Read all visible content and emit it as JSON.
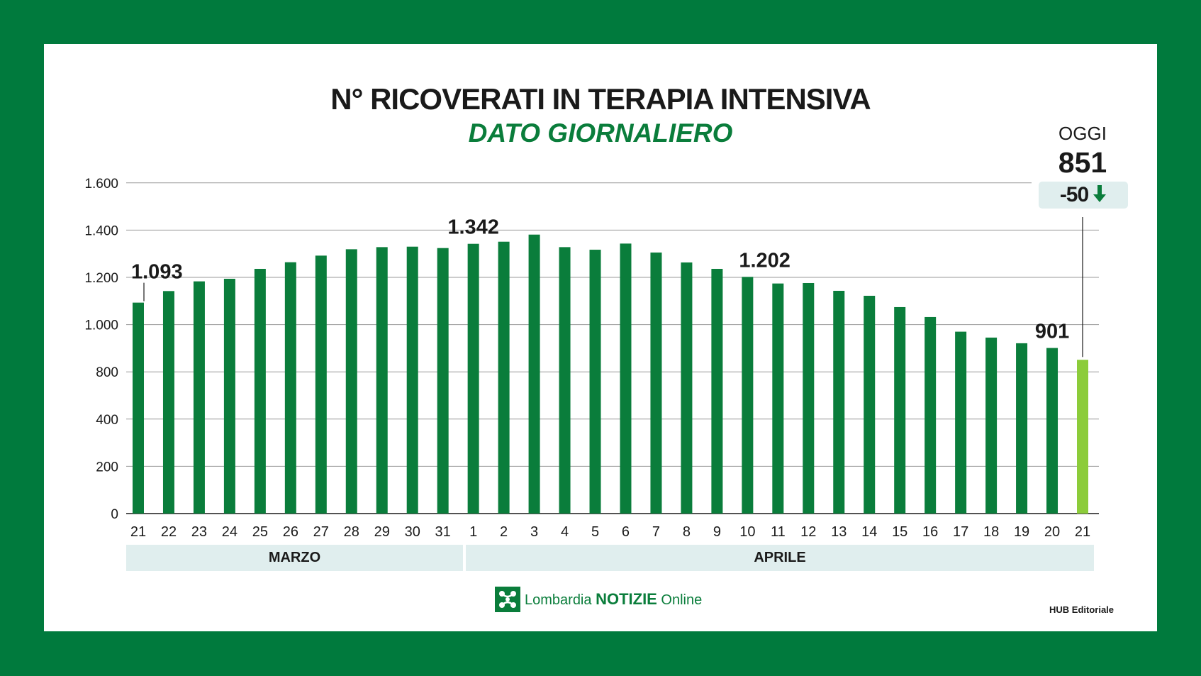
{
  "title": "N° RICOVERATI IN TERAPIA INTENSIVA",
  "subtitle": "DATO GIORNALIERO",
  "today": {
    "label": "OGGI",
    "value": "851",
    "delta": "-50"
  },
  "months": [
    "MARZO",
    "APRILE"
  ],
  "footer": {
    "brand_a": "Lombardia",
    "brand_b": "NOTIZIE",
    "brand_c": "Online",
    "credit": "HUB Editoriale"
  },
  "colors": {
    "frame": "#007a3d",
    "bar": "#0a7d3b",
    "bar_today": "#8ccc3a",
    "band": "#e0eeee"
  },
  "chart_data": {
    "type": "bar",
    "title": "N° RICOVERATI IN TERAPIA INTENSIVA",
    "subtitle": "DATO GIORNALIERO",
    "ylim": [
      0,
      1600
    ],
    "yticks": [
      0,
      200,
      400,
      800,
      1000,
      1200,
      1400,
      1600
    ],
    "ytick_labels": [
      "0",
      "200",
      "400",
      "800",
      "1.000",
      "1.200",
      "1.400",
      "1.600"
    ],
    "categories": [
      "21",
      "22",
      "23",
      "24",
      "25",
      "26",
      "27",
      "28",
      "29",
      "30",
      "31",
      "1",
      "2",
      "3",
      "4",
      "5",
      "6",
      "7",
      "8",
      "9",
      "10",
      "11",
      "12",
      "13",
      "14",
      "15",
      "16",
      "17",
      "18",
      "19",
      "20",
      "21"
    ],
    "values": [
      1093,
      1142,
      1183,
      1194,
      1236,
      1264,
      1292,
      1319,
      1328,
      1330,
      1324,
      1342,
      1351,
      1381,
      1328,
      1317,
      1343,
      1305,
      1263,
      1236,
      1202,
      1174,
      1176,
      1143,
      1122,
      1074,
      1032,
      970,
      945,
      921,
      901,
      851
    ],
    "annotations": [
      {
        "index": 0,
        "text": "1.093"
      },
      {
        "index": 11,
        "text": "1.342"
      },
      {
        "index": 20,
        "text": "1.202"
      },
      {
        "index": 30,
        "text": "901"
      }
    ],
    "grid": true,
    "highlight_index": 31
  }
}
